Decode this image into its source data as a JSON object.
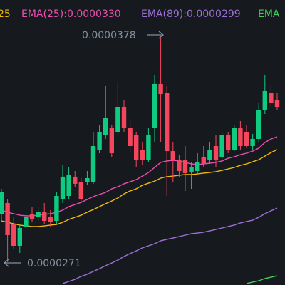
{
  "chart_data": {
    "type": "candlestick",
    "ylim": [
      2.6e-05,
      3.96e-05
    ],
    "candles": {
      "up_color": "#0ecb81",
      "down_color": "#f6465d",
      "open": [
        2.94e-05,
        2.991e-05,
        2.889e-05,
        2.787e-05,
        2.879e-05,
        2.94e-05,
        2.923e-05,
        2.947e-05,
        2.923e-05,
        2.906e-05,
        3.008e-05,
        3.025e-05,
        3.117e-05,
        3.093e-05,
        3.093e-05,
        3.093e-05,
        3.246e-05,
        3.314e-05,
        3.348e-05,
        3.331e-05,
        3.45e-05,
        3.348e-05,
        3.314e-05,
        3.246e-05,
        3.195e-05,
        3.348e-05,
        3.559e-05,
        3.518e-05,
        3.239e-05,
        3.195e-05,
        3.195e-05,
        3.137e-05,
        3.144e-05,
        3.212e-05,
        3.195e-05,
        3.263e-05,
        3.212e-05,
        3.314e-05,
        3.246e-05,
        3.348e-05,
        3.331e-05,
        3.263e-05,
        3.297e-05,
        3.433e-05,
        3.518e-05,
        3.484e-05
      ],
      "high": [
        3.059e-05,
        3.008e-05,
        2.923e-05,
        2.889e-05,
        2.94e-05,
        2.974e-05,
        2.974e-05,
        2.991e-05,
        2.957e-05,
        3.042e-05,
        3.171e-05,
        3.161e-05,
        3.144e-05,
        3.11e-05,
        3.144e-05,
        3.331e-05,
        3.365e-05,
        3.552e-05,
        3.365e-05,
        3.569e-05,
        3.484e-05,
        3.382e-05,
        3.331e-05,
        3.28e-05,
        3.348e-05,
        3.603e-05,
        3.78e-05,
        3.552e-05,
        3.28e-05,
        3.219e-05,
        3.263e-05,
        3.185e-05,
        3.229e-05,
        3.263e-05,
        3.28e-05,
        3.314e-05,
        3.331e-05,
        3.331e-05,
        3.365e-05,
        3.382e-05,
        3.365e-05,
        3.321e-05,
        3.467e-05,
        3.603e-05,
        3.552e-05,
        3.518e-05
      ],
      "low": [
        2.906e-05,
        2.71e-05,
        2.77e-05,
        2.753e-05,
        2.872e-05,
        2.899e-05,
        2.906e-05,
        2.889e-05,
        2.879e-05,
        2.889e-05,
        2.991e-05,
        3.008e-05,
        3.069e-05,
        2.991e-05,
        3.076e-05,
        3.083e-05,
        3.229e-05,
        3.297e-05,
        3.212e-05,
        3.314e-05,
        3.331e-05,
        3.229e-05,
        3.161e-05,
        3.171e-05,
        3.185e-05,
        3.28e-05,
        3.28e-05,
        3.025e-05,
        3.093e-05,
        3.117e-05,
        3.049e-05,
        3.059e-05,
        3.127e-05,
        3.161e-05,
        3.178e-05,
        3.161e-05,
        3.195e-05,
        3.229e-05,
        3.239e-05,
        3.246e-05,
        3.253e-05,
        3.246e-05,
        3.28e-05,
        3.416e-05,
        3.45e-05,
        3.433e-05
      ],
      "close": [
        3.042e-05,
        2.838e-05,
        2.787e-05,
        2.872e-05,
        2.923e-05,
        2.913e-05,
        2.947e-05,
        2.906e-05,
        2.899e-05,
        3.025e-05,
        3.117e-05,
        3.127e-05,
        3.083e-05,
        3.008e-05,
        3.11e-05,
        3.263e-05,
        3.331e-05,
        3.399e-05,
        3.229e-05,
        3.45e-05,
        3.348e-05,
        3.263e-05,
        3.195e-05,
        3.195e-05,
        3.314e-05,
        3.559e-05,
        3.511e-05,
        3.239e-05,
        3.195e-05,
        3.144e-05,
        3.134e-05,
        3.161e-05,
        3.185e-05,
        3.178e-05,
        3.246e-05,
        3.195e-05,
        3.314e-05,
        3.246e-05,
        3.348e-05,
        3.263e-05,
        3.263e-05,
        3.297e-05,
        3.433e-05,
        3.525e-05,
        3.467e-05,
        3.45e-05
      ]
    },
    "series": [
      {
        "name": "25",
        "color": "#f0b90b",
        "values": [
          2.906e-05,
          2.899e-05,
          2.892e-05,
          2.886e-05,
          2.882e-05,
          2.879e-05,
          2.879e-05,
          2.882e-05,
          2.886e-05,
          2.889e-05,
          2.899e-05,
          2.913e-05,
          2.923e-05,
          2.933e-05,
          2.947e-05,
          2.96e-05,
          2.974e-05,
          2.988e-05,
          3.001e-05,
          3.015e-05,
          3.035e-05,
          3.049e-05,
          3.059e-05,
          3.076e-05,
          3.086e-05,
          3.096e-05,
          3.11e-05,
          3.117e-05,
          3.12e-05,
          3.124e-05,
          3.127e-05,
          3.127e-05,
          3.13e-05,
          3.134e-05,
          3.137e-05,
          3.141e-05,
          3.147e-05,
          3.154e-05,
          3.161e-05,
          3.171e-05,
          3.178e-05,
          3.188e-05,
          3.198e-05,
          3.215e-05,
          3.232e-05,
          3.246e-05
        ]
      },
      {
        "name": "EMA(25):0.0000330",
        "color": "#e84fb0",
        "values": [
          2.957e-05,
          2.947e-05,
          2.94e-05,
          2.933e-05,
          2.93e-05,
          2.93e-05,
          2.933e-05,
          2.937e-05,
          2.94e-05,
          2.947e-05,
          2.957e-05,
          2.974e-05,
          2.984e-05,
          2.994e-05,
          3.008e-05,
          3.022e-05,
          3.032e-05,
          3.042e-05,
          3.059e-05,
          3.069e-05,
          3.083e-05,
          3.093e-05,
          3.103e-05,
          3.12e-05,
          3.137e-05,
          3.161e-05,
          3.185e-05,
          3.192e-05,
          3.195e-05,
          3.192e-05,
          3.185e-05,
          3.178e-05,
          3.175e-05,
          3.178e-05,
          3.181e-05,
          3.185e-05,
          3.192e-05,
          3.205e-05,
          3.212e-05,
          3.222e-05,
          3.229e-05,
          3.239e-05,
          3.253e-05,
          3.28e-05,
          3.297e-05,
          3.307e-05
        ]
      },
      {
        "name": "EMA(89):0.0000299",
        "color": "#9b6fd6",
        "values": [
          null,
          null,
          null,
          null,
          null,
          null,
          null,
          null,
          null,
          null,
          2.607e-05,
          2.617e-05,
          2.627e-05,
          2.641e-05,
          2.651e-05,
          2.665e-05,
          2.678e-05,
          2.692e-05,
          2.705e-05,
          2.719e-05,
          2.736e-05,
          2.75e-05,
          2.763e-05,
          2.777e-05,
          2.787e-05,
          2.797e-05,
          2.811e-05,
          2.818e-05,
          2.824e-05,
          2.831e-05,
          2.838e-05,
          2.845e-05,
          2.848e-05,
          2.852e-05,
          2.858e-05,
          2.865e-05,
          2.872e-05,
          2.879e-05,
          2.886e-05,
          2.896e-05,
          2.903e-05,
          2.909e-05,
          2.923e-05,
          2.94e-05,
          2.954e-05,
          2.967e-05
        ]
      },
      {
        "name": "EMA",
        "color": "#3fcf5a",
        "values": [
          null,
          null,
          null,
          null,
          null,
          null,
          null,
          null,
          null,
          null,
          null,
          null,
          null,
          null,
          null,
          null,
          null,
          null,
          null,
          null,
          null,
          null,
          null,
          null,
          null,
          null,
          null,
          null,
          null,
          null,
          null,
          null,
          null,
          null,
          null,
          null,
          null,
          null,
          null,
          null,
          2.607e-05,
          2.614e-05,
          2.62e-05,
          2.631e-05,
          2.637e-05,
          2.644e-05
        ]
      }
    ],
    "annotations": [
      {
        "text": "0.0000378"
      },
      {
        "text": "0.0000271"
      }
    ]
  }
}
